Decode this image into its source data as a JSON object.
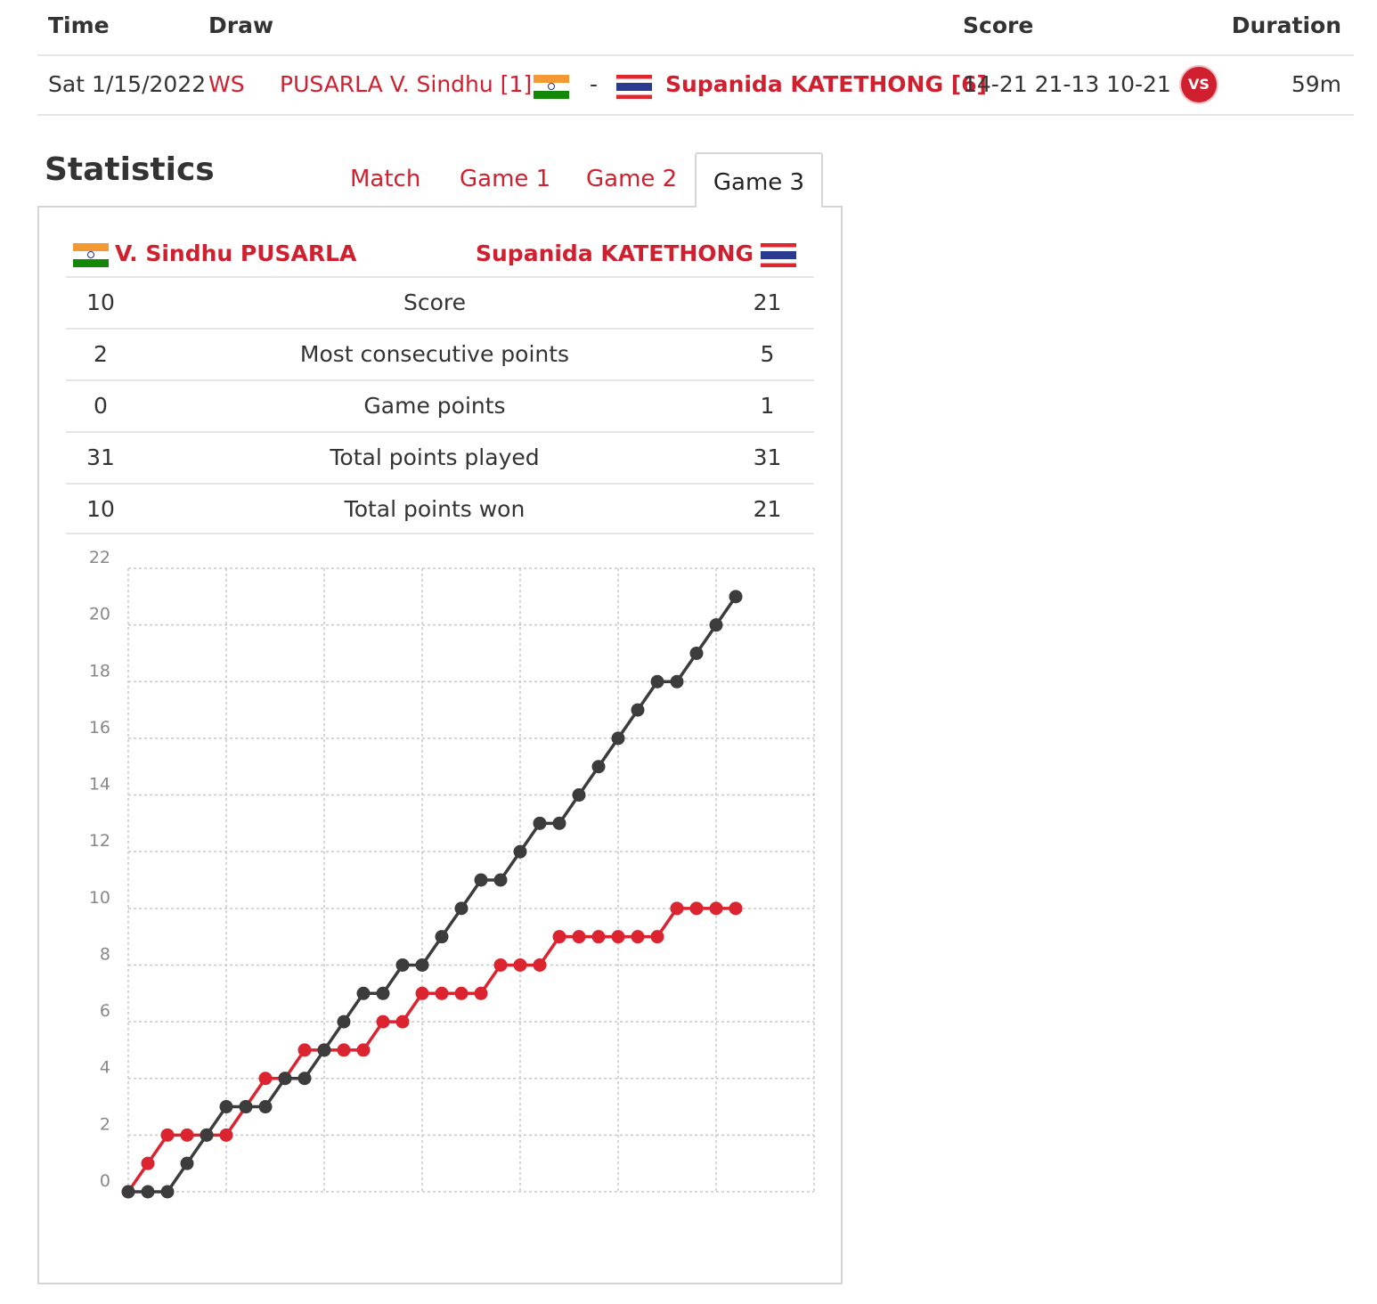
{
  "header": {
    "time": "Time",
    "draw": "Draw",
    "score": "Score",
    "duration": "Duration"
  },
  "match": {
    "date": "Sat 1/15/2022",
    "draw": "WS",
    "player1": "PUSARLA V. Sindhu [1]",
    "separator": "-",
    "player2": "Supanida KATETHONG [6]",
    "score": "14-21 21-13 10-21",
    "vs_badge": "VS",
    "duration": "59m"
  },
  "statistics": {
    "title": "Statistics",
    "tabs": [
      "Match",
      "Game 1",
      "Game 2",
      "Game 3"
    ],
    "active_tab": "Game 3",
    "player_left": "V. Sindhu PUSARLA",
    "player_right": "Supanida KATETHONG",
    "rows": [
      {
        "left": "10",
        "label": "Score",
        "right": "21"
      },
      {
        "left": "2",
        "label": "Most consecutive points",
        "right": "5"
      },
      {
        "left": "0",
        "label": "Game points",
        "right": "1"
      },
      {
        "left": "31",
        "label": "Total points played",
        "right": "31"
      },
      {
        "left": "10",
        "label": "Total points won",
        "right": "21"
      }
    ]
  },
  "colors": {
    "accent": "#d0202f",
    "series_sindhu": "#dc2430",
    "series_katethong": "#3c3c3c"
  },
  "chart_data": {
    "type": "line",
    "ylim": [
      0,
      22
    ],
    "yticks": [
      0,
      2,
      4,
      6,
      8,
      10,
      12,
      14,
      16,
      18,
      20,
      22
    ],
    "x": [
      0,
      1,
      2,
      3,
      4,
      5,
      6,
      7,
      8,
      9,
      10,
      11,
      12,
      13,
      14,
      15,
      16,
      17,
      18,
      19,
      20,
      21,
      22,
      23,
      24,
      25,
      26,
      27,
      28,
      29,
      30,
      31
    ],
    "series": [
      {
        "color": "#dc2430",
        "values": [
          0,
          1,
          2,
          2,
          2,
          2,
          3,
          4,
          4,
          5,
          5,
          5,
          5,
          6,
          6,
          7,
          7,
          7,
          7,
          8,
          8,
          8,
          9,
          9,
          9,
          9,
          9,
          9,
          10,
          10,
          10,
          10
        ]
      },
      {
        "color": "#3c3c3c",
        "values": [
          0,
          0,
          0,
          1,
          2,
          3,
          3,
          3,
          4,
          4,
          5,
          6,
          7,
          7,
          8,
          8,
          9,
          10,
          11,
          11,
          12,
          13,
          13,
          14,
          15,
          16,
          17,
          18,
          18,
          19,
          20,
          21
        ]
      }
    ],
    "grid": true
  }
}
